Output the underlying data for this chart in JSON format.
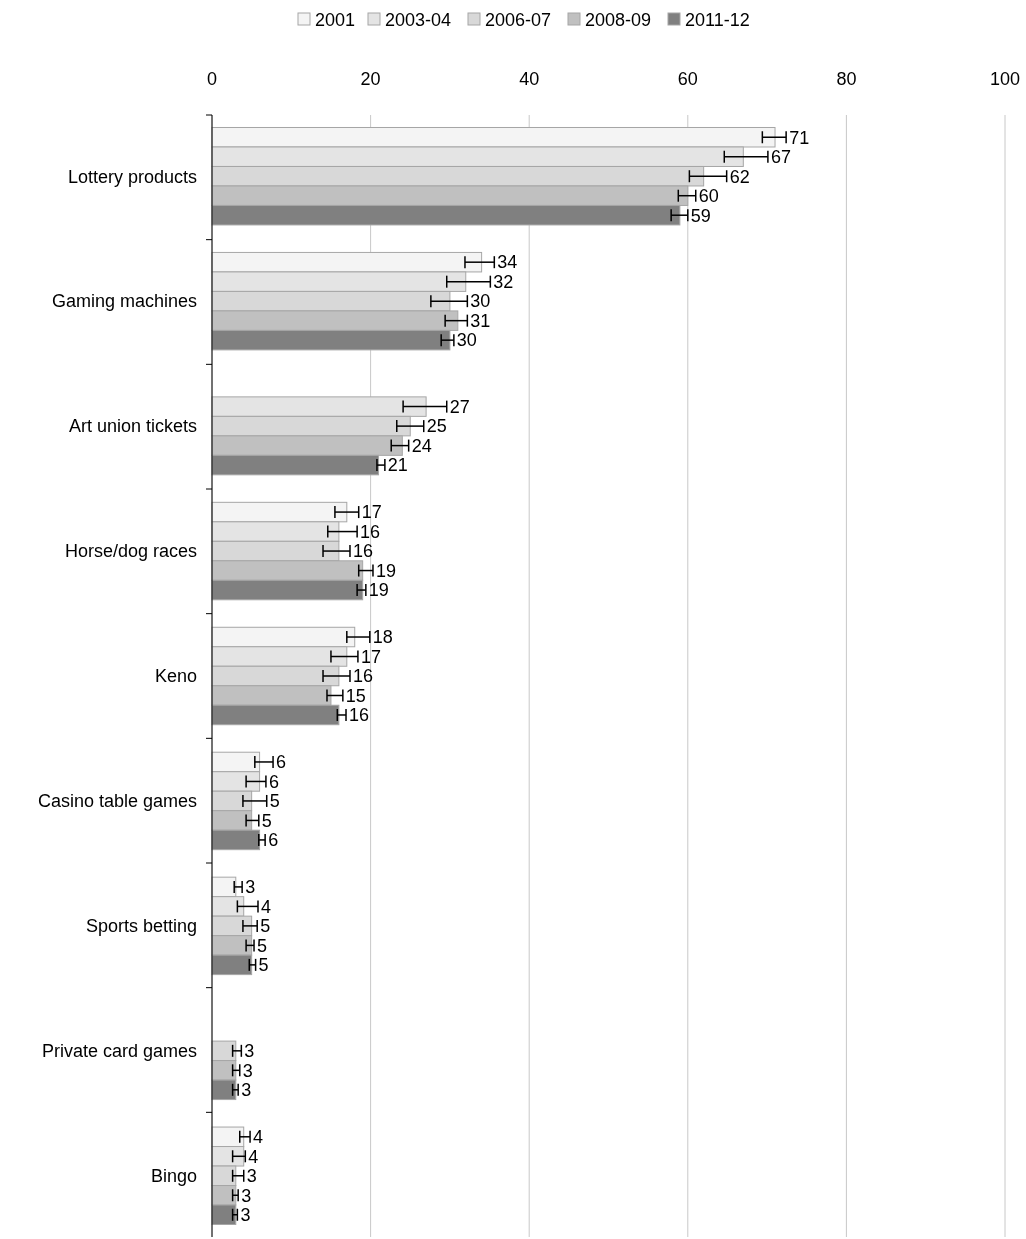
{
  "chart_data": {
    "type": "bar",
    "orientation": "horizontal",
    "categories": [
      "Lottery products",
      "Gaming machines",
      "Art union tickets",
      "Horse/dog races",
      "Keno",
      "Casino table games",
      "Sports betting",
      "Private card games",
      "Bingo"
    ],
    "series": [
      {
        "name": "2001",
        "color": "#f4f4f4",
        "values": [
          71,
          34,
          null,
          17,
          18,
          6,
          3,
          null,
          4
        ],
        "errors": [
          [
            69.4,
            72.4
          ],
          [
            31.9,
            35.6
          ],
          null,
          [
            15.5,
            18.5
          ],
          [
            17,
            19.9
          ],
          [
            5.4,
            7.7
          ],
          [
            2.8,
            3.8
          ],
          null,
          [
            3.5,
            4.8
          ]
        ]
      },
      {
        "name": "2003-04",
        "color": "#e4e4e4",
        "values": [
          67,
          32,
          27,
          16,
          17,
          6,
          4,
          null,
          4
        ],
        "errors": [
          [
            64.6,
            70.1
          ],
          [
            29.6,
            35.1
          ],
          [
            24.1,
            29.6
          ],
          [
            14.6,
            18.3
          ],
          [
            15,
            18.4
          ],
          [
            4.3,
            6.8
          ],
          [
            3.2,
            5.8
          ],
          null,
          [
            2.6,
            4.2
          ]
        ]
      },
      {
        "name": "2006-07",
        "color": "#d8d8d8",
        "values": [
          62,
          30,
          25,
          16,
          16,
          5,
          5,
          3,
          3
        ],
        "errors": [
          [
            60.2,
            64.9
          ],
          [
            27.6,
            32.2
          ],
          [
            23.3,
            26.7
          ],
          [
            14,
            17.4
          ],
          [
            14,
            17.4
          ],
          [
            3.9,
            6.9
          ],
          [
            3.9,
            5.7
          ],
          [
            2.6,
            3.7
          ],
          [
            2.6,
            4
          ]
        ]
      },
      {
        "name": "2008-09",
        "color": "#c0c0c0",
        "values": [
          60,
          31,
          24,
          19,
          15,
          5,
          5,
          3,
          3
        ],
        "errors": [
          [
            58.8,
            61
          ],
          [
            29.4,
            32.2
          ],
          [
            22.6,
            24.8
          ],
          [
            18.5,
            20.3
          ],
          [
            14.5,
            16.5
          ],
          [
            4.3,
            5.9
          ],
          [
            4.3,
            5.3
          ],
          [
            2.6,
            3.5
          ],
          [
            2.6,
            3.3
          ]
        ]
      },
      {
        "name": "2011-12",
        "color": "#808080",
        "values": [
          59,
          30,
          21,
          19,
          16,
          6,
          5,
          3,
          3
        ],
        "errors": [
          [
            57.9,
            60
          ],
          [
            28.9,
            30.5
          ],
          [
            20.8,
            21.8
          ],
          [
            18.3,
            19.4
          ],
          [
            15.8,
            16.9
          ],
          [
            5.9,
            6.7
          ],
          [
            4.7,
            5.5
          ],
          [
            2.6,
            3.3
          ],
          [
            2.6,
            3.2
          ]
        ]
      }
    ],
    "xlim": [
      0,
      100
    ],
    "xticks": [
      0,
      20,
      40,
      60,
      80,
      100
    ],
    "grid": "x",
    "legend": "top",
    "data_labels": true
  }
}
